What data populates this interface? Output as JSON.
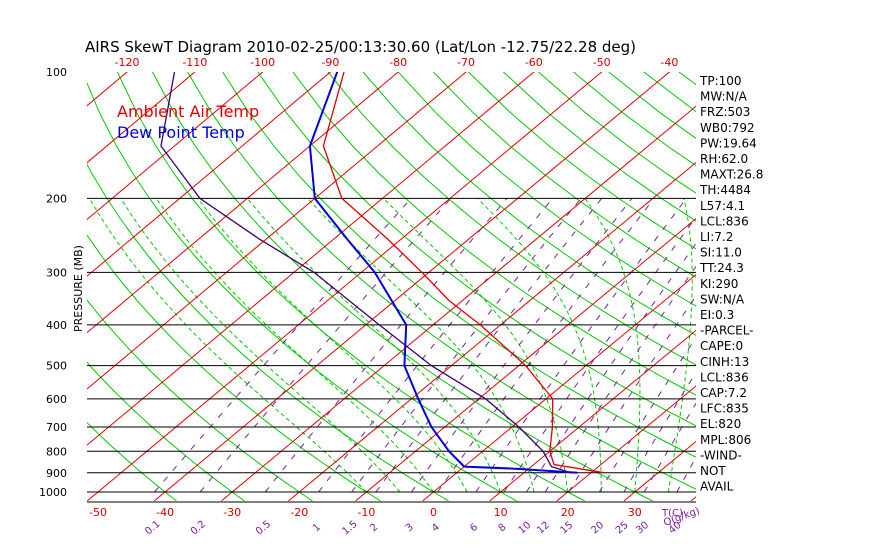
{
  "chart_data": {
    "type": "skewt",
    "title": "AIRS SkewT Diagram 2010-02-25/00:13:30.60 (Lat/Lon -12.75/22.28 deg)",
    "ylabel": "PRESSURE (MB)",
    "pressure_ticks": [
      100,
      200,
      300,
      400,
      500,
      600,
      700,
      800,
      900,
      1000
    ],
    "top_temp_ticks": [
      -120,
      -110,
      -100,
      -90,
      -80,
      -70,
      -60,
      -50,
      -40
    ],
    "bottom_temp_ticks": [
      -50,
      -40,
      -30,
      -20,
      -10,
      0,
      10,
      20,
      30
    ],
    "bottom_temp_unit": "T(C)",
    "mixing_ratio_ticks": [
      "0.1",
      "0.2",
      "0.5",
      "1",
      "1.5",
      "2",
      "3",
      "4",
      "6",
      "8",
      "10",
      "12",
      "15",
      "20",
      "25",
      "30",
      "40"
    ],
    "mixing_ratio_unit": "Q(g/kg)",
    "legend": [
      {
        "label": "Ambient Air Temp",
        "color": "#e00000"
      },
      {
        "label": "Dew Point Temp",
        "color": "#0000e0"
      }
    ],
    "series": [
      {
        "name": "Ambient Air Temp",
        "color": "#e00000",
        "points": [
          {
            "p": 100,
            "t": -88
          },
          {
            "p": 150,
            "t": -78
          },
          {
            "p": 200,
            "t": -66
          },
          {
            "p": 250,
            "t": -52
          },
          {
            "p": 300,
            "t": -41
          },
          {
            "p": 350,
            "t": -32
          },
          {
            "p": 400,
            "t": -23
          },
          {
            "p": 500,
            "t": -9
          },
          {
            "p": 600,
            "t": 1
          },
          {
            "p": 700,
            "t": 6
          },
          {
            "p": 800,
            "t": 10
          },
          {
            "p": 860,
            "t": 13
          },
          {
            "p": 900,
            "t": 22
          }
        ]
      },
      {
        "name": "Dew Point Temp",
        "color": "#0000e0",
        "points": [
          {
            "p": 100,
            "t": -89
          },
          {
            "p": 150,
            "t": -80
          },
          {
            "p": 200,
            "t": -70
          },
          {
            "p": 250,
            "t": -58
          },
          {
            "p": 300,
            "t": -48
          },
          {
            "p": 400,
            "t": -34
          },
          {
            "p": 500,
            "t": -27
          },
          {
            "p": 600,
            "t": -19
          },
          {
            "p": 700,
            "t": -12
          },
          {
            "p": 800,
            "t": -5
          },
          {
            "p": 870,
            "t": 0
          },
          {
            "p": 880,
            "t": 8
          },
          {
            "p": 900,
            "t": 18
          }
        ]
      },
      {
        "name": "Parcel",
        "color": "#3a006a",
        "points": [
          {
            "p": 100,
            "t": -113
          },
          {
            "p": 150,
            "t": -102
          },
          {
            "p": 200,
            "t": -87
          },
          {
            "p": 250,
            "t": -71
          },
          {
            "p": 300,
            "t": -57
          },
          {
            "p": 400,
            "t": -38
          },
          {
            "p": 500,
            "t": -23
          },
          {
            "p": 600,
            "t": -9
          },
          {
            "p": 700,
            "t": 1
          },
          {
            "p": 800,
            "t": 9
          },
          {
            "p": 870,
            "t": 13
          },
          {
            "p": 900,
            "t": 17
          }
        ]
      }
    ],
    "xlim": [
      -50,
      40
    ],
    "ylim": [
      1000,
      100
    ],
    "grid": true
  },
  "indices": [
    "TP:100",
    "MW:N/A",
    "FRZ:503",
    "WB0:792",
    "PW:19.64",
    "RH:62.0",
    "MAXT:26.8",
    "TH:4484",
    "L57:4.1",
    "LCL:836",
    "LI:7.2",
    "SI:11.0",
    "TT:24.3",
    "KI:290",
    "SW:N/A",
    "EI:0.3",
    "-PARCEL-",
    "CAPE:0",
    "CINH:13",
    "LCL:836",
    "CAP:7.2",
    "LFC:835",
    "EL:820",
    "MPL:806",
    "-WIND-",
    "NOT",
    "AVAIL"
  ]
}
